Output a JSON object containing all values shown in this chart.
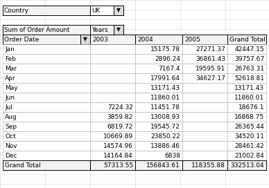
{
  "filter_label": "Country",
  "filter_value": "UK",
  "header_left": "Sum of Order Amount",
  "header_years": "Years",
  "col_headers": [
    "Order Date",
    "2003",
    "2004",
    "2005",
    "Grand Total"
  ],
  "rows": [
    [
      "Jan",
      "",
      "15175.78",
      "27271.37",
      "42447.15"
    ],
    [
      "Feb",
      "",
      "2896.24",
      "36861.43",
      "39757.67"
    ],
    [
      "Mar",
      "",
      "7167.4",
      "19595.91",
      "26763.31"
    ],
    [
      "Apr",
      "",
      "17991.64",
      "34627.17",
      "52618.81"
    ],
    [
      "May",
      "",
      "13171.43",
      "",
      "13171.43"
    ],
    [
      "Jun",
      "",
      "11860.01",
      "",
      "11860.01"
    ],
    [
      "Jul",
      "7224.32",
      "11451.78",
      "",
      "18676.1"
    ],
    [
      "Aug",
      "3859.82",
      "13008.93",
      "",
      "16868.75"
    ],
    [
      "Sep",
      "6819.72",
      "19545.72",
      "",
      "26365.44"
    ],
    [
      "Oct",
      "10669.89",
      "23850.22",
      "",
      "34520.11"
    ],
    [
      "Nov",
      "14574.96",
      "13886.46",
      "",
      "28461.42"
    ],
    [
      "Dec",
      "14164.84",
      "6838",
      "",
      "21002.84"
    ]
  ],
  "grand_total_row": [
    "Grand Total",
    "57313.55",
    "156843.61",
    "118355.88",
    "332513.04"
  ],
  "bg_color": "#ffffff",
  "excel_grid_color": "#d0d0d0",
  "table_border_color": "#000000",
  "inner_grid_color": "#c0c0c0",
  "text_color": "#000000",
  "font_size": 6.5,
  "figsize": [
    3.88,
    2.72
  ],
  "dpi": 100
}
